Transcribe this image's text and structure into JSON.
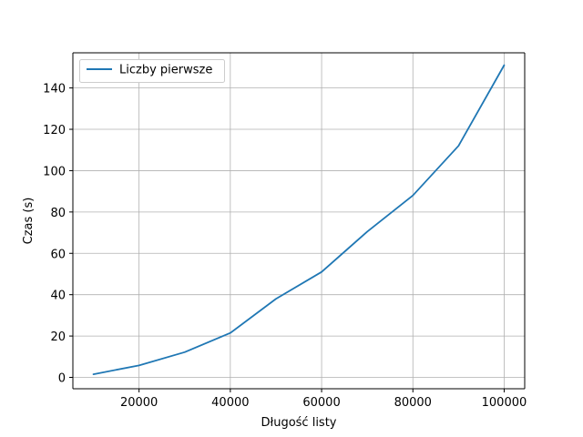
{
  "chart_data": {
    "type": "line",
    "title": "",
    "xlabel": "Długość listy",
    "ylabel": "Czas (s)",
    "xlim": [
      5500,
      104500
    ],
    "ylim": [
      -5.5,
      157
    ],
    "xticks": [
      20000,
      40000,
      60000,
      80000,
      100000
    ],
    "yticks": [
      0,
      20,
      40,
      60,
      80,
      100,
      120,
      140
    ],
    "grid": true,
    "legend_position": "top-left",
    "series": [
      {
        "name": "Liczby pierwsze",
        "color": "#1f77b4",
        "x": [
          10000,
          20000,
          30000,
          40000,
          50000,
          60000,
          70000,
          80000,
          90000,
          100000
        ],
        "y": [
          1.5,
          5.8,
          12.2,
          21.5,
          38.0,
          51.0,
          70.5,
          88.0,
          112.0,
          151.0
        ]
      }
    ]
  }
}
